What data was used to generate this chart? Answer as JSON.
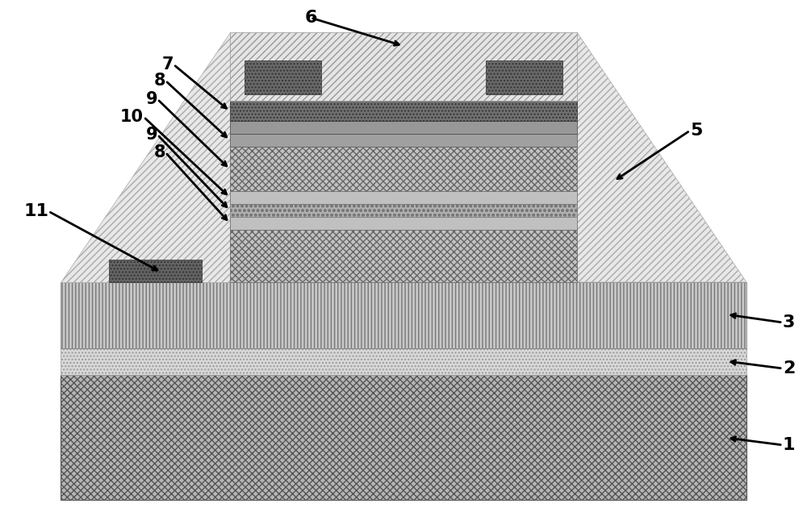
{
  "bg_color": "#ffffff",
  "fig_width": 10.0,
  "fig_height": 6.4,
  "dpi": 100
}
